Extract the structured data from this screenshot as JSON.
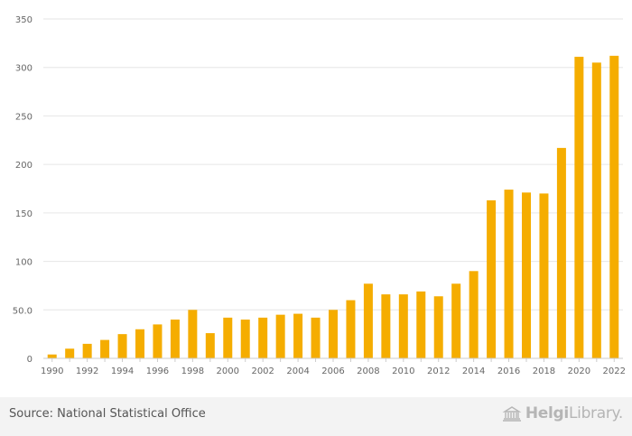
{
  "chart_data": {
    "type": "bar",
    "categories": [
      "1990",
      "1991",
      "1992",
      "1993",
      "1994",
      "1995",
      "1996",
      "1997",
      "1998",
      "1999",
      "2000",
      "2001",
      "2002",
      "2003",
      "2004",
      "2005",
      "2006",
      "2007",
      "2008",
      "2009",
      "2010",
      "2011",
      "2012",
      "2013",
      "2014",
      "2015",
      "2016",
      "2017",
      "2018",
      "2019",
      "2020",
      "2021",
      "2022"
    ],
    "x_tick_labels": [
      "1990",
      "1992",
      "1994",
      "1996",
      "1998",
      "2000",
      "2002",
      "2004",
      "2006",
      "2008",
      "2010",
      "2012",
      "2014",
      "2016",
      "2018",
      "2020",
      "2022"
    ],
    "values": [
      4,
      10,
      15,
      19,
      25,
      30,
      35,
      40,
      50,
      26,
      42,
      40,
      42,
      45,
      46,
      42,
      50,
      60,
      77,
      66,
      66,
      69,
      64,
      77,
      90,
      163,
      174,
      171,
      170,
      217,
      311,
      305,
      312
    ],
    "ylim": [
      0,
      350
    ],
    "y_ticks": [
      0,
      50,
      100,
      150,
      200,
      250,
      300,
      350
    ],
    "y_tick_labels": [
      "0",
      "50.0",
      "100",
      "150",
      "200",
      "250",
      "300",
      "350"
    ],
    "title": "",
    "xlabel": "",
    "ylabel": "",
    "grid": true,
    "bar_color": "#f5ad00"
  },
  "footer": {
    "source": "Source: National Statistical Office",
    "logo_bold": "Helgi",
    "logo_light": "Library."
  }
}
